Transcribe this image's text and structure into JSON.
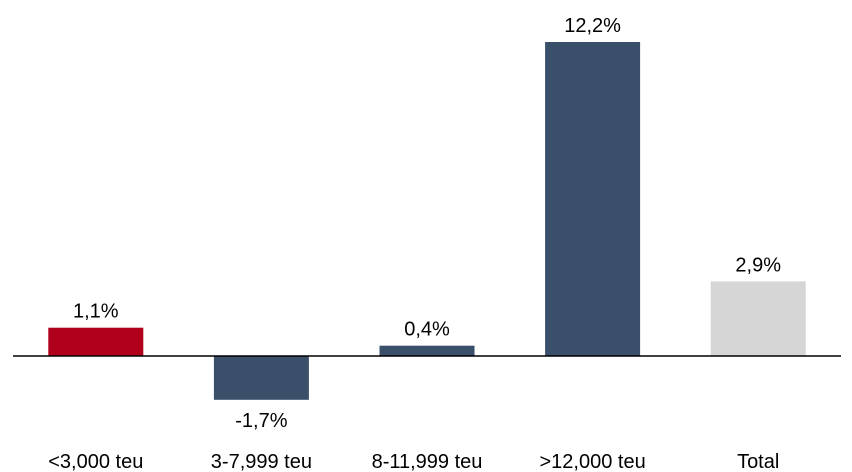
{
  "chart_data": {
    "type": "bar",
    "categories": [
      "<3,000 teu",
      "3-7,999 teu",
      "8-11,999 teu",
      ">12,000 teu",
      "Total"
    ],
    "values": [
      1.1,
      -1.7,
      0.4,
      12.2,
      2.9
    ],
    "value_labels": [
      "1,1%",
      "-1,7%",
      "0,4%",
      "12,2%",
      "2,9%"
    ],
    "bar_colors": [
      "#b0001c",
      "#394f6a",
      "#394f6a",
      "#394f6a",
      "#d6d6d6"
    ],
    "axis_color": "#000000",
    "title": "",
    "xlabel": "",
    "ylabel": "",
    "ylim": [
      -2.2,
      13.7
    ],
    "grid": false,
    "legend": "none"
  }
}
